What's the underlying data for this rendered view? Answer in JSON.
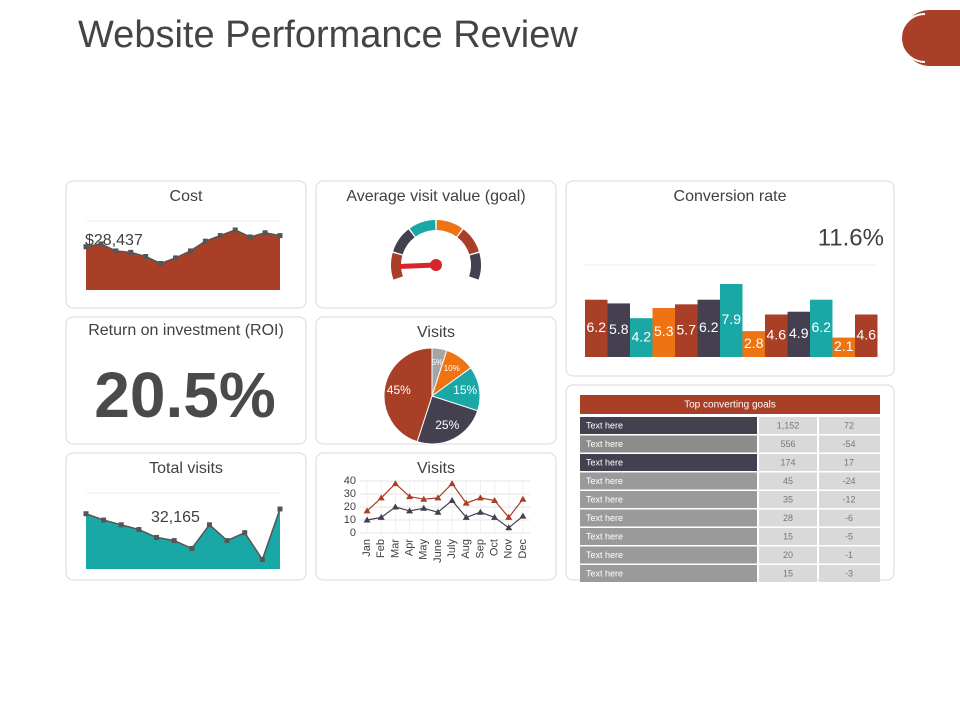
{
  "title": "Website Performance Review",
  "chart_data": [
    {
      "type": "area",
      "title": "Cost",
      "annotation": "$28,437",
      "color": "#a93f26",
      "values": [
        31,
        33,
        28,
        27,
        24,
        19,
        23,
        28,
        35,
        39,
        43,
        38,
        41,
        39
      ]
    },
    {
      "type": "gauge",
      "title": "Average visit value (goal)",
      "value": 8,
      "ylim": [
        0,
        100
      ],
      "segment_colors": [
        "#a93f26",
        "#444050",
        "#1aa8a6",
        "#ee7312",
        "#a93f26",
        "#444050"
      ],
      "needle_color": "#d7262b"
    },
    {
      "type": "bar",
      "title": "Conversion rate",
      "annotation": "11.6%",
      "values": [
        6.2,
        5.8,
        4.2,
        5.3,
        5.7,
        6.2,
        7.9,
        2.8,
        4.6,
        4.9,
        6.2,
        2.1,
        4.6
      ],
      "colors": [
        "#a93f26",
        "#444050",
        "#1aa8a6",
        "#ee7312",
        "#a93f26",
        "#444050",
        "#1aa8a6",
        "#ee7312",
        "#a93f26",
        "#444050",
        "#1aa8a6",
        "#ee7312",
        "#a93f26"
      ]
    },
    {
      "type": "pie",
      "title": "Visits",
      "values": [
        5,
        10,
        15,
        25,
        45
      ],
      "value_labels": [
        "5%",
        "10%",
        "15%",
        "25%",
        "45%"
      ],
      "colors": [
        "#a5a5a5",
        "#ee7312",
        "#1aa8a6",
        "#444050",
        "#a93f26"
      ]
    },
    {
      "type": "area",
      "title": "Total visits",
      "annotation": "32,165",
      "color": "#1aa8a6",
      "values": [
        35,
        31,
        28,
        25,
        20,
        18,
        13,
        28,
        18,
        23,
        6,
        38
      ]
    },
    {
      "type": "line",
      "title": "Visits",
      "categories": [
        "Jan",
        "Feb",
        "Mar",
        "Apr",
        "May",
        "June",
        "July",
        "Aug",
        "Sep",
        "Oct",
        "Nov",
        "Dec"
      ],
      "series": [
        {
          "color": "#a93f26",
          "values": [
            17,
            27,
            38,
            28,
            26,
            27,
            38,
            23,
            27,
            25,
            12,
            26
          ]
        },
        {
          "color": "#444050",
          "values": [
            10,
            12,
            20,
            17,
            19,
            16,
            25,
            12,
            16,
            12,
            4,
            13
          ]
        }
      ],
      "ylim": [
        0,
        40
      ],
      "yticks": [
        0,
        10,
        20,
        30,
        40
      ],
      "grid": true
    }
  ],
  "roi": {
    "title": "Return on investment (ROI)",
    "value": "20.5%"
  },
  "table": {
    "title": "Top converting goals",
    "rows": [
      [
        "Text here",
        "1,152",
        72
      ],
      [
        "Text here",
        556,
        -54
      ],
      [
        "Text here",
        174,
        17
      ],
      [
        "Text here",
        45,
        -24
      ],
      [
        "Text here",
        35,
        -12
      ],
      [
        "Text here",
        28,
        -6
      ],
      [
        "Text here",
        15,
        -5
      ],
      [
        "Text here",
        20,
        -1
      ],
      [
        "Text here",
        15,
        -3
      ]
    ]
  }
}
